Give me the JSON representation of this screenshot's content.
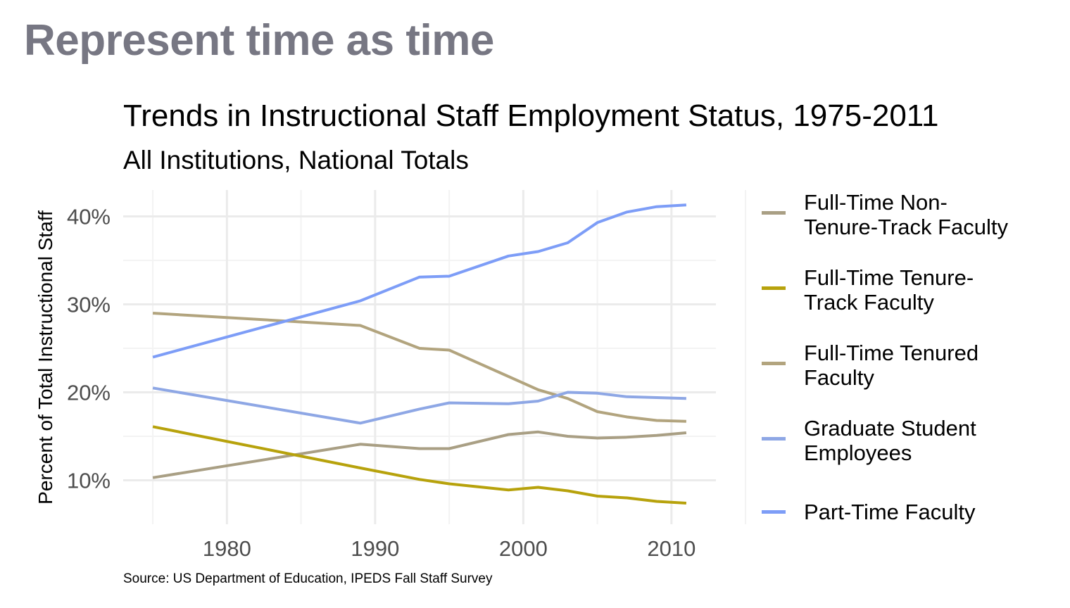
{
  "slide": {
    "title": "Represent time as time"
  },
  "chart_data": {
    "type": "line",
    "title": "Trends in Instructional Staff Employment Status, 1975-2011",
    "subtitle": "All Institutions, National Totals",
    "xlabel": "",
    "ylabel": "Percent of Total Instructional Staff",
    "caption": "Source: US Department of Education, IPEDS Fall Staff Survey",
    "xlim": [
      1973,
      2013
    ],
    "ylim": [
      5,
      43
    ],
    "x_ticks": [
      1980,
      1990,
      2000,
      2010
    ],
    "x_tick_labels": [
      "1980",
      "1990",
      "2000",
      "2010"
    ],
    "y_ticks": [
      10,
      20,
      30,
      40
    ],
    "y_tick_labels": [
      "10%",
      "20%",
      "30%",
      "40%"
    ],
    "grid": true,
    "legend_position": "right",
    "x": [
      1975,
      1989,
      1993,
      1995,
      1999,
      2001,
      2003,
      2005,
      2007,
      2009,
      2011
    ],
    "series": [
      {
        "name": "Full-Time Non-Tenure-Track Faculty",
        "label_lines": [
          "Full-Time Non-",
          "Tenure-Track Faculty"
        ],
        "color": "#a99f84",
        "values": [
          10.3,
          14.1,
          13.6,
          13.6,
          15.2,
          15.5,
          15.0,
          14.8,
          14.9,
          15.1,
          15.4
        ]
      },
      {
        "name": "Full-Time Tenure-Track Faculty",
        "label_lines": [
          "Full-Time Tenure-",
          "Track Faculty"
        ],
        "color": "#b7a20c",
        "values": [
          16.1,
          11.4,
          10.1,
          9.6,
          8.9,
          9.2,
          8.8,
          8.2,
          8.0,
          7.6,
          7.4
        ]
      },
      {
        "name": "Full-Time Tenured Faculty",
        "label_lines": [
          "Full-Time Tenured",
          "Faculty"
        ],
        "color": "#b2a47e",
        "values": [
          29.0,
          27.6,
          25.0,
          24.8,
          21.8,
          20.3,
          19.3,
          17.8,
          17.2,
          16.8,
          16.7
        ]
      },
      {
        "name": "Graduate Student Employees",
        "label_lines": [
          "Graduate Student",
          "Employees"
        ],
        "color": "#8ea7e5",
        "values": [
          20.5,
          16.5,
          18.1,
          18.8,
          18.7,
          19.0,
          20.0,
          19.9,
          19.5,
          19.4,
          19.3
        ]
      },
      {
        "name": "Part-Time Faculty",
        "label_lines": [
          "Part-Time Faculty"
        ],
        "color": "#7d9df7",
        "values": [
          24.0,
          30.4,
          33.1,
          33.2,
          35.5,
          36.0,
          37.0,
          39.3,
          40.5,
          41.1,
          41.3
        ]
      }
    ]
  }
}
